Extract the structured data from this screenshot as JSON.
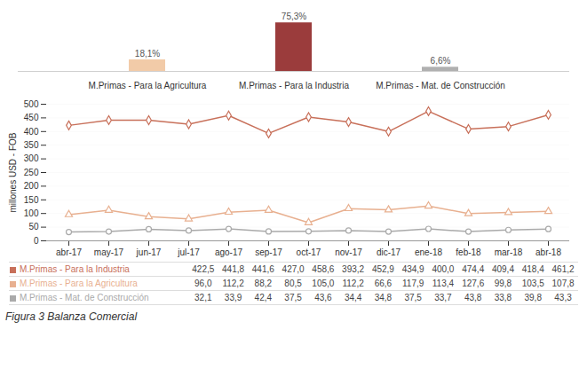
{
  "chart_data": [
    {
      "type": "bar",
      "categories": [
        "M.Primas - Para la Agricultura",
        "M.Primas - Para la Industria",
        "M.Primas - Mat. de Construcción"
      ],
      "values": [
        18.1,
        75.3,
        6.6
      ],
      "value_labels": [
        "18,1%",
        "75,3%",
        "6,6%"
      ],
      "colors": [
        "#f2cba8",
        "#9b3c3c",
        "#b0b0b0"
      ],
      "data_labels": true,
      "tick_labels": "x",
      "ylim": [
        -4,
        88
      ],
      "grid": false
    },
    {
      "type": "line",
      "categories": [
        "abr-17",
        "may-17",
        "jun-17",
        "jul-17",
        "ago-17",
        "sep-17",
        "oct-17",
        "nov-17",
        "dic-17",
        "ene-18",
        "feb-18",
        "mar-18",
        "abr-18"
      ],
      "series": [
        {
          "name": "M.Primas - Para la Industria",
          "color": "#c8705a",
          "marker": "diamond",
          "values": [
            422.5,
            441.8,
            441.6,
            427.0,
            458.6,
            393.2,
            452.9,
            434.9,
            400.0,
            474.4,
            409.4,
            418.4,
            461.2
          ],
          "value_labels": [
            "422,5",
            "441,8",
            "441,6",
            "427,0",
            "458,6",
            "393,2",
            "452,9",
            "434,9",
            "400,0",
            "474,4",
            "409,4",
            "418,4",
            "461,2"
          ]
        },
        {
          "name": "M.Primas - Para la Agricultura",
          "color": "#e8b090",
          "marker": "triangle",
          "values": [
            96.0,
            112.2,
            88.2,
            80.5,
            105.0,
            112.2,
            66.6,
            117.9,
            113.4,
            127.6,
            99.8,
            103.5,
            107.8
          ],
          "value_labels": [
            "96,0",
            "112,2",
            "88,2",
            "80,5",
            "105,0",
            "112,2",
            "66,6",
            "117,9",
            "113,4",
            "127,6",
            "99,8",
            "103,5",
            "107,8"
          ]
        },
        {
          "name": "M.Primas - Mat. de Construcción",
          "color": "#aaaaaa",
          "marker": "circle",
          "values": [
            32.1,
            33.9,
            42.4,
            37.5,
            43.6,
            34.4,
            34.8,
            37.5,
            33.7,
            43.8,
            33.8,
            39.8,
            43.3
          ],
          "value_labels": [
            "32,1",
            "33,9",
            "42,4",
            "37,5",
            "43,6",
            "34,4",
            "34,8",
            "37,5",
            "33,7",
            "43,8",
            "33,8",
            "39,8",
            "43,3"
          ]
        }
      ],
      "ylabel": "millones USD - FOB",
      "ylim": [
        0,
        500
      ],
      "yticks": [
        0,
        50,
        100,
        150,
        200,
        250,
        300,
        350,
        400,
        450,
        500
      ],
      "grid": true,
      "caption": "Figura 3 Balanza Comercial"
    }
  ]
}
